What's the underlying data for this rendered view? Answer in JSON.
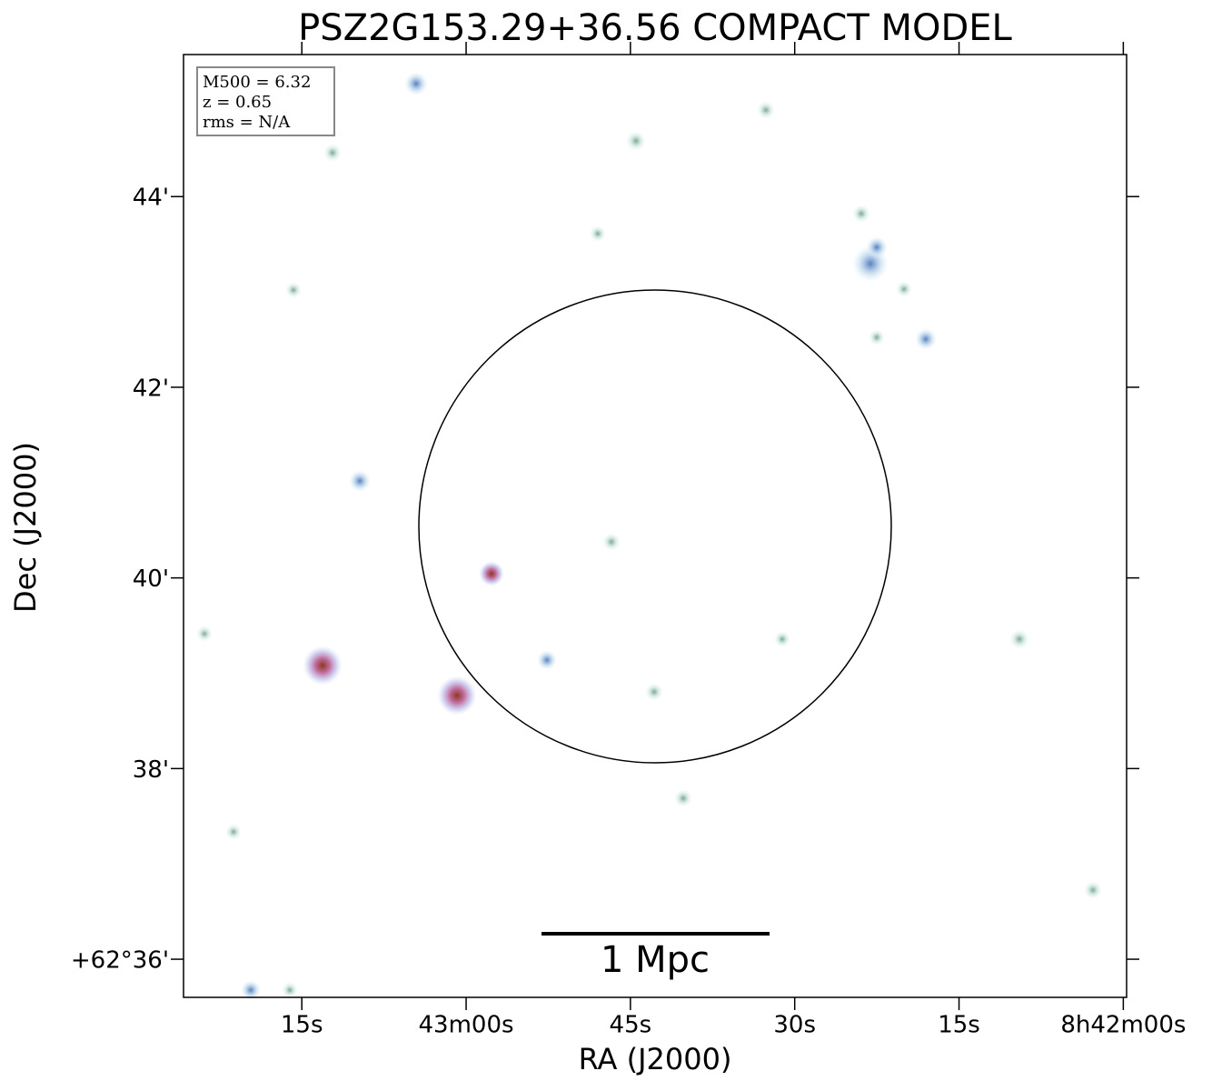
{
  "chart_data": {
    "type": "sky-image",
    "title": "PSZ2G153.29+36.56 COMPACT MODEL",
    "xlabel": "RA (J2000)",
    "ylabel": "Dec (J2000)",
    "xlim": [
      30205.8,
      30119.7
    ],
    "xticks": [
      {
        "value": 30195,
        "label": "15s"
      },
      {
        "value": 30180,
        "label": "43m00s"
      },
      {
        "value": 30165,
        "label": "45s"
      },
      {
        "value": 30150,
        "label": "30s"
      },
      {
        "value": 30135,
        "label": "15s"
      },
      {
        "value": 30120,
        "label": "8h42m00s"
      }
    ],
    "ylim": [
      35.6,
      45.49
    ],
    "yticks": [
      {
        "value": 36,
        "label": "+62°36'"
      },
      {
        "value": 38,
        "label": "38'"
      },
      {
        "value": 40,
        "label": "40'"
      },
      {
        "value": 42,
        "label": "42'"
      },
      {
        "value": 44,
        "label": "44'"
      }
    ],
    "annotations": [
      "M500 = 6.32",
      "z = 0.65",
      "rms = N/A"
    ],
    "scalebar_label": "1 Mpc"
  }
}
